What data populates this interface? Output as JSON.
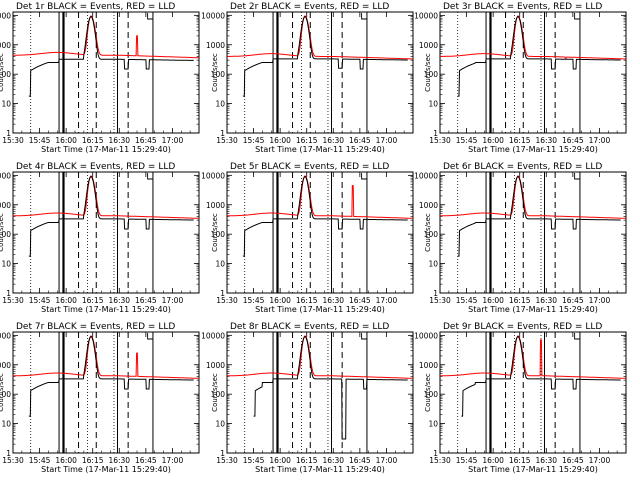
{
  "chart_data": {
    "type": "line",
    "layout": "3x3 grid of log-scale lightcurve panels",
    "xlabel": "Start Time (17-Mar-11 15:29:40)",
    "ylabel": "Counts/sec",
    "x_tick_labels": [
      "15:30",
      "15:45",
      "16:00",
      "16:15",
      "16:30",
      "16:45",
      "17:00"
    ],
    "x_tick_minutes": [
      0,
      15,
      30,
      45,
      60,
      75,
      90
    ],
    "xlim_minutes": [
      0,
      105
    ],
    "y_tick_labels": [
      "1",
      "10",
      "100",
      "1000",
      "10000"
    ],
    "ylim": [
      1,
      13000
    ],
    "yscale": "log",
    "legend": "BLACK = Events, RED = LLD",
    "series_names": [
      "Events",
      "LLD"
    ],
    "colors": {
      "events": "#000000",
      "lld": "#ff0000"
    },
    "reference_lines_minutes": {
      "dotted": [
        10,
        42,
        57
      ],
      "solid": [
        26,
        59,
        79
      ],
      "thick": [
        28.5
      ],
      "dashed": [
        37,
        47,
        65
      ]
    },
    "flare": {
      "start_minute": 40,
      "peak_minute": 44,
      "end_minute": 52,
      "peak_counts": 9500
    },
    "panels": [
      {
        "title": "Det 1r BLACK = Events, RED = LLD",
        "events_start_minute": 9,
        "spike_minute": 70,
        "spike_height": 2000,
        "dip_minute": 64,
        "dip_value": 150,
        "base_lld": 440,
        "base_events": 320
      },
      {
        "title": "Det 2r BLACK = Events, RED = LLD",
        "events_start_minute": 9,
        "spike_minute": null,
        "spike_height": null,
        "dip_minute": 64,
        "dip_value": 160,
        "base_lld": 400,
        "base_events": 330
      },
      {
        "title": "Det 3r BLACK = Events, RED = LLD",
        "events_start_minute": 10,
        "spike_minute": 71,
        "spike_height": 350,
        "dip_minute": 64,
        "dip_value": 150,
        "base_lld": 400,
        "base_events": 330
      },
      {
        "title": "Det 4r BLACK = Events, RED = LLD",
        "events_start_minute": 9,
        "spike_minute": null,
        "spike_height": null,
        "dip_minute": 64,
        "dip_value": 150,
        "base_lld": 420,
        "base_events": 330
      },
      {
        "title": "Det 5r BLACK = Events, RED = LLD",
        "events_start_minute": 9,
        "spike_minute": 71,
        "spike_height": 4500,
        "dip_minute": 64,
        "dip_value": 150,
        "base_lld": 420,
        "base_events": 330
      },
      {
        "title": "Det 6r BLACK = Events, RED = LLD",
        "events_start_minute": 10,
        "spike_minute": null,
        "spike_height": null,
        "dip_minute": 64,
        "dip_value": 150,
        "base_lld": 420,
        "base_events": 330
      },
      {
        "title": "Det 7r BLACK = Events, RED = LLD",
        "events_start_minute": 9,
        "spike_minute": 70,
        "spike_height": 2500,
        "dip_minute": 64,
        "dip_value": 150,
        "base_lld": 420,
        "base_events": 330
      },
      {
        "title": "Det 8r BLACK = Events, RED = LLD",
        "events_start_minute": 15,
        "spike_minute": null,
        "spike_height": null,
        "dip_minute": 66,
        "dip_value": 3,
        "base_lld": 420,
        "base_events": 330
      },
      {
        "title": "Det 9r BLACK = Events, RED = LLD",
        "events_start_minute": 12,
        "spike_minute": 57,
        "spike_height": 7000,
        "dip_minute": 64,
        "dip_value": 150,
        "base_lld": 420,
        "base_events": 330
      }
    ]
  }
}
